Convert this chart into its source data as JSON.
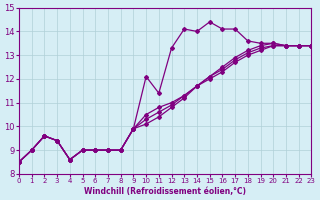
{
  "xlabel": "Windchill (Refroidissement éolien,°C)",
  "ylabel": "",
  "bg_color": "#d6eef5",
  "line_color": "#800080",
  "xlim": [
    0,
    23
  ],
  "ylim": [
    8,
    15
  ],
  "xticks": [
    0,
    1,
    2,
    3,
    4,
    5,
    6,
    7,
    8,
    9,
    10,
    11,
    12,
    13,
    14,
    15,
    16,
    17,
    18,
    19,
    20,
    21,
    22,
    23
  ],
  "yticks": [
    8,
    9,
    10,
    11,
    12,
    13,
    14,
    15
  ],
  "lines": [
    {
      "x": [
        0,
        1,
        2,
        3,
        4,
        5,
        6,
        7,
        8,
        9,
        10,
        11,
        12,
        13,
        14,
        15,
        16,
        17,
        18,
        19,
        20,
        21,
        22,
        23
      ],
      "y": [
        8.5,
        9.0,
        9.6,
        9.4,
        8.6,
        9.0,
        9.0,
        9.0,
        9.0,
        9.9,
        12.1,
        11.4,
        13.3,
        14.1,
        14.0,
        14.4,
        14.1,
        14.1,
        13.6,
        13.5,
        13.5,
        13.4,
        13.4,
        13.4
      ]
    },
    {
      "x": [
        0,
        1,
        2,
        3,
        4,
        5,
        6,
        7,
        8,
        9,
        10,
        11,
        12,
        13,
        14,
        15,
        16,
        17,
        18,
        19,
        20,
        21,
        22,
        23
      ],
      "y": [
        8.5,
        9.0,
        9.6,
        9.4,
        8.6,
        9.0,
        9.0,
        9.0,
        9.0,
        9.9,
        10.5,
        10.8,
        11.0,
        11.3,
        11.7,
        12.1,
        12.5,
        12.9,
        13.2,
        13.4,
        13.5,
        13.4,
        13.4,
        13.4
      ]
    },
    {
      "x": [
        0,
        1,
        2,
        3,
        4,
        5,
        6,
        7,
        8,
        9,
        10,
        11,
        12,
        13,
        14,
        15,
        16,
        17,
        18,
        19,
        20,
        21,
        22,
        23
      ],
      "y": [
        8.5,
        9.0,
        9.6,
        9.4,
        8.6,
        9.0,
        9.0,
        9.0,
        9.0,
        9.9,
        10.3,
        10.6,
        10.9,
        11.3,
        11.7,
        12.1,
        12.4,
        12.8,
        13.1,
        13.3,
        13.4,
        13.4,
        13.4,
        13.4
      ]
    },
    {
      "x": [
        0,
        1,
        2,
        3,
        4,
        5,
        6,
        7,
        8,
        9,
        10,
        11,
        12,
        13,
        14,
        15,
        16,
        17,
        18,
        19,
        20,
        21,
        22,
        23
      ],
      "y": [
        8.5,
        9.0,
        9.6,
        9.4,
        8.6,
        9.0,
        9.0,
        9.0,
        9.0,
        9.9,
        10.1,
        10.4,
        10.8,
        11.2,
        11.7,
        12.0,
        12.3,
        12.7,
        13.0,
        13.2,
        13.4,
        13.4,
        13.4,
        13.4
      ]
    }
  ],
  "grid_color": "#b0d0d8",
  "marker": "D",
  "markersize": 2.0,
  "linewidth": 0.9
}
